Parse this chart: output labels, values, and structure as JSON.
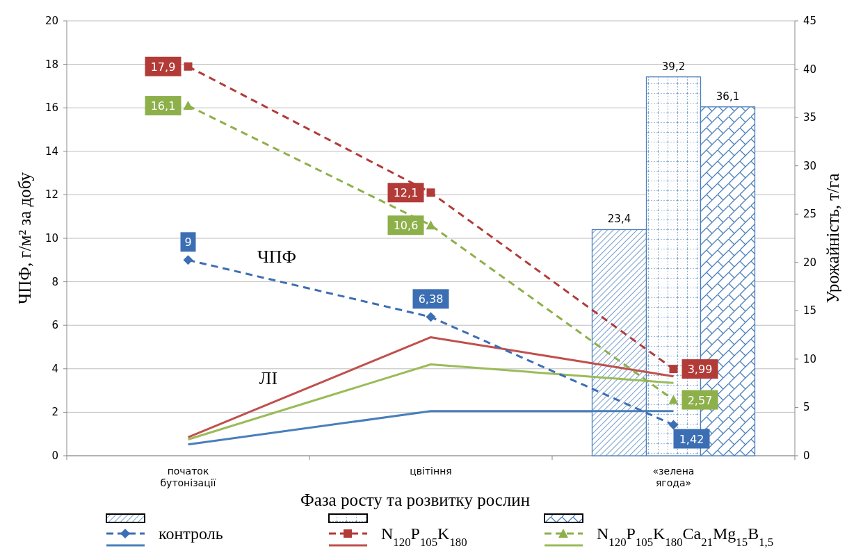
{
  "chart_data": {
    "type": "line",
    "xlabel": "Фаза росту та розвитку рослин",
    "ylabel": "ЧПФ, г/м² за добу",
    "y2label": "Урожайність, т/га",
    "categories": [
      "початок бутонізації",
      "цвітіння",
      "«зелена ягода»"
    ],
    "ylim": [
      0,
      20
    ],
    "yticks": [
      0,
      2,
      4,
      6,
      8,
      10,
      12,
      14,
      16,
      18,
      20
    ],
    "y2lim": [
      0,
      45
    ],
    "y2ticks": [
      0,
      5,
      10,
      15,
      20,
      25,
      30,
      35,
      40,
      45
    ],
    "grid": "y",
    "legend": "bottom",
    "annotations": [
      "ЧПФ",
      "ЛІ"
    ],
    "series": [
      {
        "type": "bar",
        "axis": "y2",
        "color": "#4a7ebb",
        "values": [
          null,
          null,
          23.4
        ],
        "value_labels": [
          null,
          null,
          "23,4"
        ]
      },
      {
        "type": "bar",
        "axis": "y2",
        "color": "#4a7ebb",
        "values": [
          null,
          null,
          39.2
        ],
        "value_labels": [
          null,
          null,
          "39,2"
        ]
      },
      {
        "type": "bar",
        "axis": "y2",
        "color": "#4a7ebb",
        "values": [
          null,
          null,
          36.1
        ],
        "value_labels": [
          null,
          null,
          "36,1"
        ]
      },
      {
        "name": "контроль",
        "color": "#3c6eb4",
        "marker": "diamond",
        "line_style": "dashed",
        "values": [
          9,
          6.38,
          1.42
        ],
        "value_labels": [
          "9",
          "6,38",
          "1,42"
        ]
      },
      {
        "name": "N$_{120}$P$_{105}$K$_{180}$",
        "color": "#b23b38",
        "marker": "square",
        "line_style": "dashed",
        "values": [
          17.9,
          12.1,
          3.99
        ],
        "value_labels": [
          "17,9",
          "12,1",
          "3,99"
        ]
      },
      {
        "name": "N$_{120}$P$_{105}$K$_{180}$Ca$_{21}$Mg$_{15}$B$_{1,5}$",
        "color": "#8db04a",
        "marker": "triangle",
        "line_style": "dashed",
        "values": [
          16.1,
          10.6,
          2.57
        ],
        "value_labels": [
          "16,1",
          "10,6",
          "2,57"
        ]
      },
      {
        "color": "#4a7ebb",
        "marker": "none",
        "line_style": "solid",
        "values": [
          0.52,
          2.05,
          2.05
        ]
      },
      {
        "color": "#c0504d",
        "marker": "none",
        "line_style": "solid",
        "values": [
          0.85,
          5.45,
          3.65
        ]
      },
      {
        "color": "#9bbb59",
        "marker": "none",
        "line_style": "solid",
        "values": [
          0.75,
          4.2,
          3.35
        ]
      }
    ]
  }
}
